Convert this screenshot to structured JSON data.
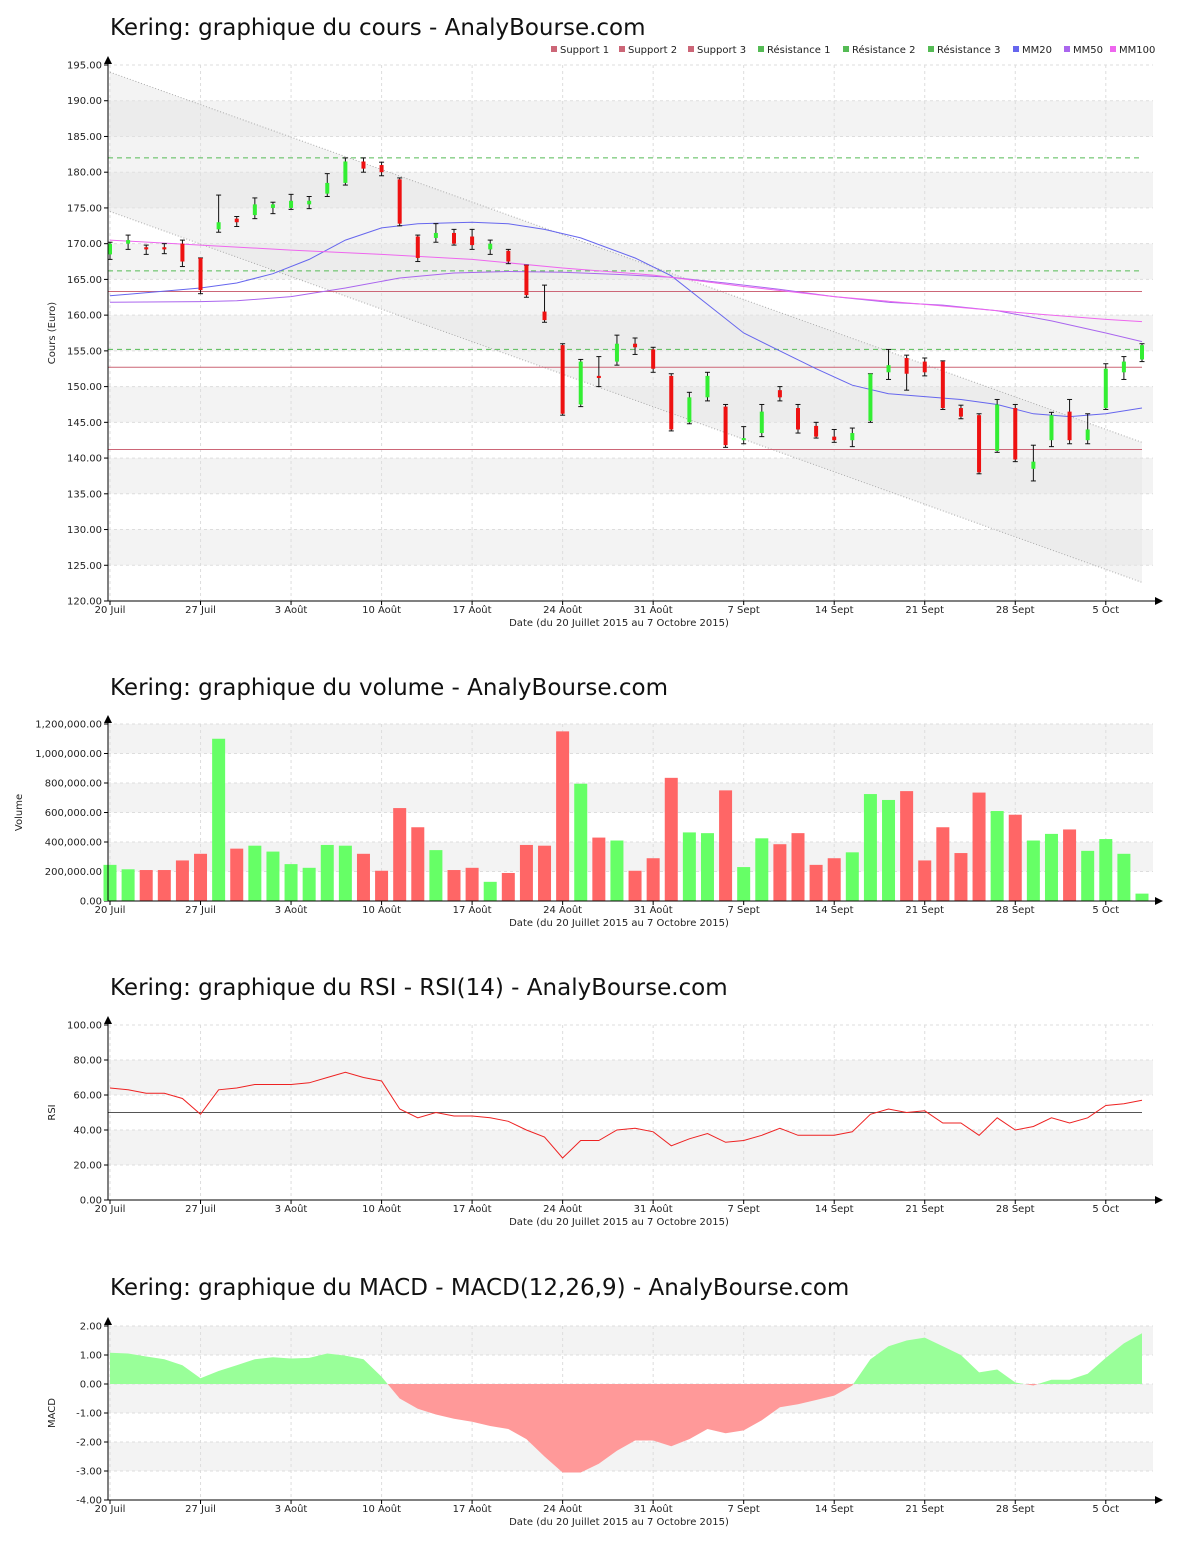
{
  "colors": {
    "up": "#33ee33",
    "down": "#ee1111",
    "vol_up": "#66ff66",
    "vol_down": "#ff6666",
    "macd_pos": "#99ff99",
    "macd_neg": "#ff9999",
    "support": "#cc6677",
    "resistance": "#55bb55",
    "mm20": "#6666ee",
    "mm50": "#aa66ee",
    "mm100": "#ee66ee",
    "rsi": "#ee2222"
  },
  "chart_data": [
    {
      "id": "price",
      "type": "candlestick",
      "title": "Kering: graphique du cours - AnalyBourse.com",
      "xlabel": "Date (du 20 Juillet 2015 au 7 Octobre 2015)",
      "ylabel": "Cours (Euro)",
      "ylim": [
        120,
        195
      ],
      "yticks": [
        "120.00",
        "125.00",
        "130.00",
        "135.00",
        "140.00",
        "145.00",
        "150.00",
        "155.00",
        "160.00",
        "165.00",
        "170.00",
        "175.00",
        "180.00",
        "185.00",
        "190.00",
        "195.00"
      ],
      "xticks": [
        {
          "label": "20 Juil",
          "i": 0
        },
        {
          "label": "27 Juil",
          "i": 5
        },
        {
          "label": "3 Août",
          "i": 10
        },
        {
          "label": "10 Août",
          "i": 15
        },
        {
          "label": "17 Août",
          "i": 20
        },
        {
          "label": "24 Août",
          "i": 25
        },
        {
          "label": "31 Août",
          "i": 30
        },
        {
          "label": "7 Sept",
          "i": 35
        },
        {
          "label": "14 Sept",
          "i": 40
        },
        {
          "label": "21 Sept",
          "i": 45
        },
        {
          "label": "28 Sept",
          "i": 50
        },
        {
          "label": "5 Oct",
          "i": 55
        }
      ],
      "n_days": 58,
      "legend": [
        "Support 1",
        "Support 2",
        "Support 3",
        "Résistance 1",
        "Résistance 2",
        "Résistance 3",
        "MM20",
        "MM50",
        "MM100"
      ],
      "legend_position": "top-right",
      "levels": {
        "support": [
          163.3,
          152.7,
          141.2
        ],
        "resistance": [
          182.0,
          166.2,
          155.2
        ]
      },
      "candles": [
        [
          168.5,
          170.0,
          167.8,
          170.2
        ],
        [
          170.0,
          170.5,
          169.2,
          171.2
        ],
        [
          169.5,
          169.2,
          168.5,
          169.8
        ],
        [
          169.5,
          169.2,
          168.6,
          170.0
        ],
        [
          170.0,
          167.5,
          166.8,
          170.5
        ],
        [
          168.0,
          163.5,
          163.0,
          168.0
        ],
        [
          172.0,
          173.0,
          171.6,
          176.8
        ],
        [
          173.5,
          173.0,
          172.4,
          173.8
        ],
        [
          174.0,
          175.5,
          173.5,
          176.4
        ],
        [
          175.0,
          175.5,
          174.2,
          175.8
        ],
        [
          175.0,
          176.0,
          174.8,
          176.9
        ],
        [
          175.5,
          176.0,
          174.9,
          176.6
        ],
        [
          177.0,
          178.5,
          176.6,
          179.8
        ],
        [
          178.5,
          181.5,
          178.2,
          182.0
        ],
        [
          181.5,
          180.5,
          180.0,
          182.0
        ],
        [
          181.0,
          180.0,
          179.5,
          181.4
        ],
        [
          179.0,
          172.8,
          172.5,
          179.2
        ],
        [
          171.0,
          168.0,
          167.5,
          171.2
        ],
        [
          170.8,
          171.5,
          170.2,
          172.8
        ],
        [
          171.5,
          170.0,
          169.8,
          172.0
        ],
        [
          171.0,
          169.8,
          169.2,
          172.0
        ],
        [
          169.2,
          170.0,
          168.5,
          170.5
        ],
        [
          169.0,
          167.5,
          167.2,
          169.2
        ],
        [
          167.0,
          162.8,
          162.5,
          167.0
        ],
        [
          160.5,
          159.3,
          159.0,
          164.2
        ],
        [
          155.8,
          146.2,
          146.0,
          156.0
        ],
        [
          147.5,
          153.5,
          147.2,
          153.8
        ],
        [
          151.5,
          151.2,
          150.0,
          154.2
        ],
        [
          153.5,
          156.0,
          153.0,
          157.2
        ],
        [
          156.0,
          155.5,
          154.5,
          156.8
        ],
        [
          155.2,
          152.5,
          152.0,
          155.5
        ],
        [
          151.5,
          144.0,
          143.8,
          151.8
        ],
        [
          145.0,
          148.5,
          144.8,
          149.2
        ],
        [
          148.5,
          151.5,
          148.0,
          152.0
        ],
        [
          147.2,
          141.8,
          141.5,
          147.5
        ],
        [
          142.5,
          142.8,
          142.0,
          144.4
        ],
        [
          143.5,
          146.5,
          143.0,
          147.5
        ],
        [
          149.5,
          148.5,
          148.0,
          150.0
        ],
        [
          147.0,
          144.0,
          143.5,
          147.5
        ],
        [
          144.5,
          143.0,
          142.8,
          145.0
        ],
        [
          143.0,
          142.5,
          142.2,
          144.0
        ],
        [
          142.5,
          143.5,
          141.6,
          144.2
        ],
        [
          145.2,
          151.8,
          145.0,
          151.8
        ],
        [
          152.0,
          153.0,
          151.0,
          155.2
        ],
        [
          154.0,
          151.8,
          149.5,
          154.4
        ],
        [
          153.5,
          152.0,
          151.5,
          154.0
        ],
        [
          153.5,
          147.0,
          146.8,
          153.6
        ],
        [
          147.0,
          145.8,
          145.5,
          147.4
        ],
        [
          146.0,
          138.0,
          137.8,
          146.2
        ],
        [
          141.0,
          147.5,
          140.8,
          148.2
        ],
        [
          147.0,
          139.8,
          139.5,
          147.5
        ],
        [
          138.5,
          139.5,
          136.8,
          141.8
        ],
        [
          142.5,
          146.0,
          141.6,
          146.4
        ],
        [
          146.5,
          142.5,
          142.0,
          148.2
        ],
        [
          142.5,
          144.0,
          142.0,
          146.2
        ],
        [
          147.0,
          152.5,
          146.8,
          153.2
        ],
        [
          152.0,
          153.5,
          151.0,
          154.2
        ],
        [
          153.8,
          155.8,
          153.5,
          156.0
        ]
      ],
      "ma": {
        "MM20": [
          [
            0,
            162.7
          ],
          [
            5,
            163.8
          ],
          [
            7,
            164.5
          ],
          [
            9,
            165.8
          ],
          [
            11,
            167.8
          ],
          [
            13,
            170.5
          ],
          [
            15,
            172.2
          ],
          [
            17,
            172.8
          ],
          [
            20,
            173.0
          ],
          [
            22,
            172.8
          ],
          [
            24,
            172.0
          ],
          [
            26,
            170.8
          ],
          [
            29,
            168.0
          ],
          [
            31,
            165.5
          ],
          [
            33,
            161.5
          ],
          [
            35,
            157.5
          ],
          [
            37,
            155.0
          ],
          [
            39,
            152.5
          ],
          [
            41,
            150.2
          ],
          [
            43,
            149.0
          ],
          [
            45,
            148.6
          ],
          [
            47,
            148.2
          ],
          [
            49,
            147.5
          ],
          [
            51,
            146.2
          ],
          [
            53,
            145.8
          ],
          [
            55,
            146.2
          ],
          [
            57,
            147.0
          ]
        ],
        "MM50": [
          [
            0,
            161.8
          ],
          [
            5,
            161.9
          ],
          [
            7,
            162.0
          ],
          [
            10,
            162.6
          ],
          [
            13,
            163.8
          ],
          [
            16,
            165.2
          ],
          [
            19,
            165.9
          ],
          [
            22,
            166.1
          ],
          [
            25,
            166.0
          ],
          [
            28,
            165.7
          ],
          [
            31,
            165.3
          ],
          [
            34,
            164.5
          ],
          [
            37,
            163.6
          ],
          [
            40,
            162.6
          ],
          [
            43,
            161.8
          ],
          [
            46,
            161.4
          ],
          [
            49,
            160.6
          ],
          [
            52,
            159.2
          ],
          [
            55,
            157.5
          ],
          [
            57,
            156.3
          ]
        ],
        "MM100": [
          [
            0,
            170.5
          ],
          [
            5,
            169.8
          ],
          [
            10,
            169.1
          ],
          [
            15,
            168.5
          ],
          [
            20,
            167.8
          ],
          [
            25,
            166.6
          ],
          [
            30,
            165.6
          ],
          [
            35,
            164.0
          ],
          [
            40,
            162.6
          ],
          [
            45,
            161.5
          ],
          [
            50,
            160.4
          ],
          [
            55,
            159.4
          ],
          [
            57,
            159.1
          ]
        ]
      },
      "trend_channel": {
        "upper": [
          [
            0,
            194.0
          ],
          [
            57,
            142.2
          ]
        ],
        "lower": [
          [
            0,
            174.5
          ],
          [
            57,
            122.6
          ]
        ]
      }
    },
    {
      "id": "volume",
      "type": "bar",
      "title": "Kering: graphique du volume - AnalyBourse.com",
      "xlabel": "Date (du 20 Juillet 2015 au 7 Octobre 2015)",
      "ylabel": "Volume",
      "ylim": [
        0,
        1200000
      ],
      "yticks": [
        "0.00",
        "200,000.00",
        "400,000.00",
        "600,000.00",
        "800,000.00",
        "1,000,000.00",
        "1,200,000.00"
      ],
      "values": [
        245000,
        215000,
        210000,
        210000,
        275000,
        320000,
        1100000,
        355000,
        375000,
        335000,
        250000,
        225000,
        380000,
        375000,
        320000,
        205000,
        630000,
        500000,
        345000,
        210000,
        225000,
        130000,
        190000,
        380000,
        375000,
        1150000,
        795000,
        430000,
        410000,
        205000,
        290000,
        835000,
        465000,
        460000,
        750000,
        230000,
        425000,
        385000,
        460000,
        245000,
        290000,
        330000,
        725000,
        685000,
        745000,
        275000,
        500000,
        325000,
        735000,
        610000,
        585000,
        410000,
        455000,
        485000,
        340000,
        420000,
        320000,
        50000
      ]
    },
    {
      "id": "rsi",
      "type": "line",
      "title": "Kering: graphique du RSI - RSI(14) - AnalyBourse.com",
      "xlabel": "Date (du 20 Juillet 2015 au 7 Octobre 2015)",
      "ylabel": "RSI",
      "ylim": [
        0,
        100
      ],
      "yticks": [
        "0.00",
        "20.00",
        "40.00",
        "60.00",
        "80.00",
        "100.00"
      ],
      "reference": 50,
      "values": [
        64,
        63,
        61,
        61,
        58,
        49,
        63,
        64,
        66,
        66,
        66,
        67,
        70,
        73,
        70,
        68,
        52,
        47,
        50,
        48,
        48,
        47,
        45,
        40,
        36,
        24,
        34,
        34,
        40,
        41,
        39,
        31,
        35,
        38,
        33,
        34,
        37,
        41,
        37,
        37,
        37,
        39,
        49,
        52,
        50,
        51,
        44,
        44,
        37,
        47,
        40,
        42,
        47,
        44,
        47,
        54,
        55,
        57
      ]
    },
    {
      "id": "macd",
      "type": "area",
      "title": "Kering: graphique du MACD - MACD(12,26,9) - AnalyBourse.com",
      "xlabel": "Date (du 20 Juillet 2015 au 7 Octobre 2015)",
      "ylabel": "MACD",
      "ylim": [
        -4,
        2
      ],
      "yticks": [
        "-4.00",
        "-3.00",
        "-2.00",
        "-1.00",
        "0.00",
        "1.00",
        "2.00"
      ],
      "values": [
        1.08,
        1.05,
        0.95,
        0.85,
        0.65,
        0.2,
        0.45,
        0.65,
        0.85,
        0.92,
        0.88,
        0.9,
        1.05,
        0.98,
        0.85,
        0.25,
        -0.5,
        -0.85,
        -1.05,
        -1.2,
        -1.3,
        -1.45,
        -1.55,
        -1.9,
        -2.5,
        -3.05,
        -3.05,
        -2.75,
        -2.3,
        -1.95,
        -1.95,
        -2.15,
        -1.9,
        -1.55,
        -1.7,
        -1.6,
        -1.25,
        -0.8,
        -0.7,
        -0.55,
        -0.4,
        -0.05,
        0.85,
        1.3,
        1.5,
        1.6,
        1.3,
        1.0,
        0.4,
        0.5,
        0.05,
        -0.05,
        0.15,
        0.15,
        0.35,
        0.9,
        1.4,
        1.75
      ]
    }
  ]
}
